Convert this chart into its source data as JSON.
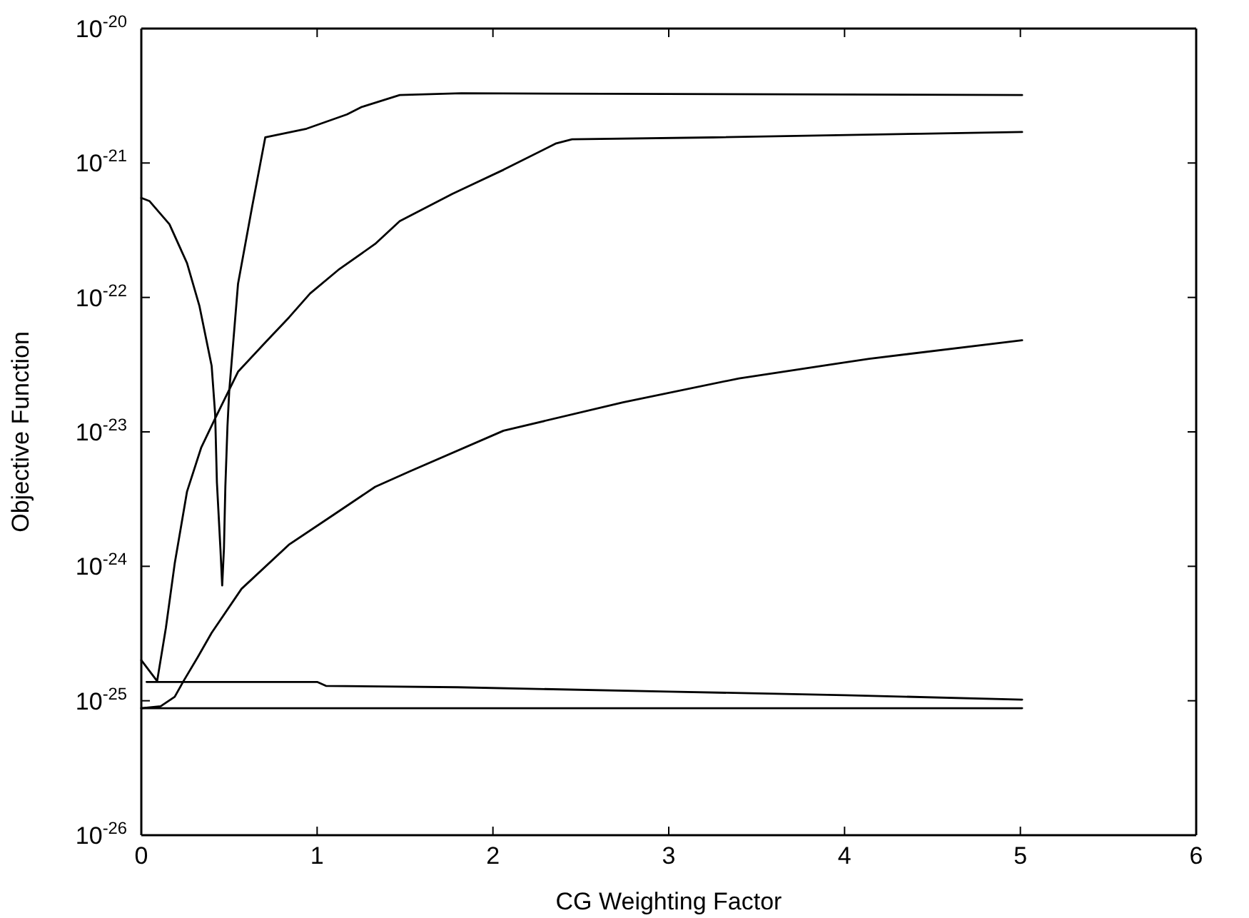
{
  "chart_data": {
    "type": "line",
    "xlabel": "CG Weighting Factor",
    "ylabel": "Objective Function",
    "log": "y",
    "xlim": [
      0,
      6
    ],
    "xticks": [
      0,
      1,
      2,
      3,
      4,
      5,
      6
    ],
    "ylim": [
      1e-26,
      1e-20
    ],
    "yticks": [
      {
        "value": 1e-26,
        "label": "10$^{-26}$"
      },
      {
        "value": 1e-25,
        "label": "10$^{-25}$"
      },
      {
        "value": 1e-24,
        "label": "10$^{-24}$"
      },
      {
        "value": 1e-23,
        "label": "10$^{-23}$"
      },
      {
        "value": 1e-22,
        "label": "10$^{-22}$"
      },
      {
        "value": 1e-21,
        "label": "10$^{-21}$"
      },
      {
        "value": 1e-20,
        "label": "10$^{-20}$"
      }
    ],
    "grid": false,
    "marker": "none",
    "line_style": "solid",
    "series": [
      {
        "color": "#000000",
        "x": [
          0,
          0.047,
          0.16,
          0.26,
          0.33,
          0.4,
          0.42,
          0.43,
          0.45,
          0.46,
          0.47,
          0.478,
          0.49,
          0.5,
          0.55,
          0.63,
          0.705,
          0.94,
          1.17,
          1.25,
          1.47,
          1.82,
          5.01
        ],
        "values": [
          5.5e-22,
          5.2e-22,
          3.5e-22,
          1.8e-22,
          8.7e-23,
          3.1e-23,
          1.35e-23,
          4.2e-24,
          1.35e-24,
          7.2e-25,
          1.35e-24,
          3.9e-24,
          1.1e-23,
          2e-23,
          1.26e-22,
          4.7e-22,
          1.55e-21,
          1.8e-21,
          2.3e-21,
          2.6e-21,
          3.2e-21,
          3.3e-21,
          3.2e-21
        ]
      },
      {
        "color": "#000000",
        "x": [
          0,
          0.09,
          0.14,
          0.19,
          0.26,
          0.34,
          0.42,
          0.55,
          0.71,
          0.84,
          0.96,
          1.12,
          1.33,
          1.47,
          1.77,
          2.06,
          2.36,
          2.45,
          3.25,
          4.43,
          5.01
        ],
        "values": [
          2e-25,
          1.4e-25,
          3.5e-25,
          1.05e-24,
          3.6e-24,
          7.6e-24,
          1.26e-23,
          2.8e-23,
          4.7e-23,
          7.1e-23,
          1.07e-22,
          1.6e-22,
          2.5e-22,
          3.7e-22,
          5.9e-22,
          8.9e-22,
          1.4e-21,
          1.5e-21,
          1.55e-21,
          1.65e-21,
          1.7e-21
        ]
      },
      {
        "color": "#000000",
        "x": [
          0,
          0.11,
          0.19,
          0.24,
          0.32,
          0.4,
          0.57,
          0.84,
          1.09,
          1.33,
          1.53,
          2.06,
          2.74,
          3.4,
          4.14,
          5.01
        ],
        "values": [
          8.8e-26,
          9.1e-26,
          1.07e-25,
          1.4e-25,
          2.1e-25,
          3.2e-25,
          6.8e-25,
          1.45e-24,
          2.4e-24,
          3.9e-24,
          5.1e-24,
          1.02e-23,
          1.66e-23,
          2.5e-23,
          3.5e-23,
          4.8e-23
        ]
      },
      {
        "color": "#000000",
        "x": [
          0.03,
          1.0,
          1.05,
          1.8,
          3,
          4,
          5.01
        ],
        "values": [
          1.38e-25,
          1.38e-25,
          1.29e-25,
          1.26e-25,
          1.17e-25,
          1.1e-25,
          1.02e-25
        ]
      },
      {
        "color": "#000000",
        "x": [
          0,
          5.01
        ],
        "values": [
          8.8e-26,
          8.8e-26
        ]
      }
    ]
  }
}
